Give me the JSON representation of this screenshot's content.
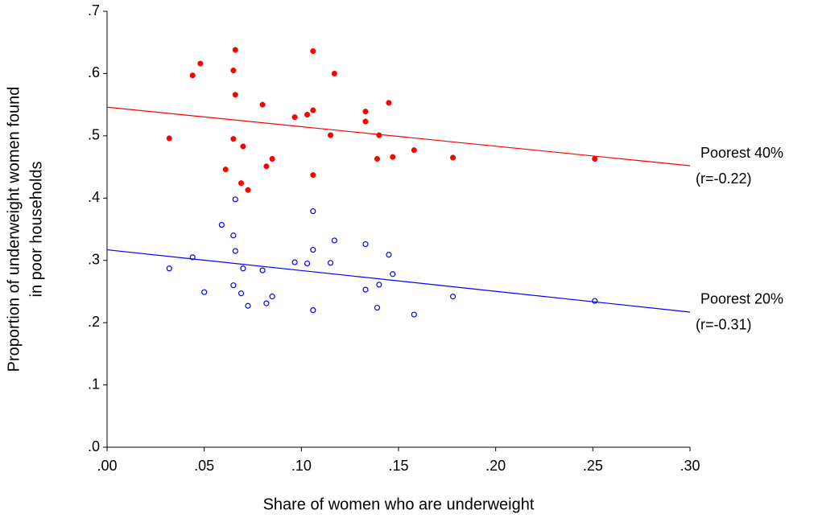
{
  "chart_data": {
    "type": "scatter",
    "x_label": "Share of women who are underweight",
    "y_label": [
      "Proportion of underweight women found",
      "in poor households"
    ],
    "xlim": [
      0,
      0.3
    ],
    "ylim": [
      0,
      0.7
    ],
    "xticks": [
      {
        "value": 0,
        "label": ".00"
      },
      {
        "value": 0.05,
        "label": ".05"
      },
      {
        "value": 0.1,
        "label": ".10"
      },
      {
        "value": 0.15,
        "label": ".15"
      },
      {
        "value": 0.2,
        "label": ".20"
      },
      {
        "value": 0.25,
        "label": ".25"
      },
      {
        "value": 0.3,
        "label": ".30"
      }
    ],
    "yticks": [
      {
        "value": 0,
        "label": ".0"
      },
      {
        "value": 0.1,
        "label": ".1"
      },
      {
        "value": 0.2,
        "label": ".2"
      },
      {
        "value": 0.3,
        "label": ".3"
      },
      {
        "value": 0.4,
        "label": ".4"
      },
      {
        "value": 0.5,
        "label": ".5"
      },
      {
        "value": 0.6,
        "label": ".6"
      },
      {
        "value": 0.7,
        "label": ".7"
      }
    ],
    "series": [
      {
        "color": "#ff0000",
        "marker": "filled",
        "x": [
          0.032,
          0.044,
          0.048,
          0.065,
          0.066,
          0.066,
          0.08,
          0.0966,
          0.103,
          0.106,
          0.106,
          0.117,
          0.133,
          0.133,
          0.145,
          0.115,
          0.14,
          0.139,
          0.147,
          0.158,
          0.178,
          0.251,
          0.065,
          0.07,
          0.061,
          0.069,
          0.0725,
          0.082,
          0.085,
          0.106
        ],
        "values": [
          0.496,
          0.597,
          0.616,
          0.605,
          0.638,
          0.566,
          0.55,
          0.53,
          0.534,
          0.541,
          0.636,
          0.6,
          0.539,
          0.523,
          0.553,
          0.501,
          0.501,
          0.463,
          0.466,
          0.477,
          0.465,
          0.463,
          0.495,
          0.483,
          0.446,
          0.424,
          0.413,
          0.451,
          0.463,
          0.437
        ],
        "fit": {
          "x": [
            0,
            0.3
          ],
          "values": [
            0.546,
            0.452
          ]
        },
        "annotation": [
          "Poorest 40%",
          "(r=-0.22)"
        ]
      },
      {
        "color": "#0000ff",
        "marker": "open",
        "x": [
          0.032,
          0.044,
          0.05,
          0.059,
          0.065,
          0.065,
          0.066,
          0.066,
          0.069,
          0.07,
          0.0725,
          0.08,
          0.082,
          0.085,
          0.0966,
          0.103,
          0.106,
          0.106,
          0.106,
          0.115,
          0.117,
          0.133,
          0.133,
          0.145,
          0.147,
          0.14,
          0.139,
          0.158,
          0.178,
          0.251
        ],
        "values": [
          0.287,
          0.305,
          0.249,
          0.357,
          0.34,
          0.26,
          0.315,
          0.398,
          0.247,
          0.287,
          0.227,
          0.284,
          0.231,
          0.242,
          0.297,
          0.295,
          0.317,
          0.379,
          0.22,
          0.296,
          0.332,
          0.326,
          0.253,
          0.309,
          0.278,
          0.261,
          0.224,
          0.213,
          0.242,
          0.235
        ],
        "fit": {
          "x": [
            0,
            0.3
          ],
          "values": [
            0.317,
            0.217
          ]
        },
        "annotation": [
          "Poorest 20%",
          "(r=-0.31)"
        ]
      }
    ]
  }
}
